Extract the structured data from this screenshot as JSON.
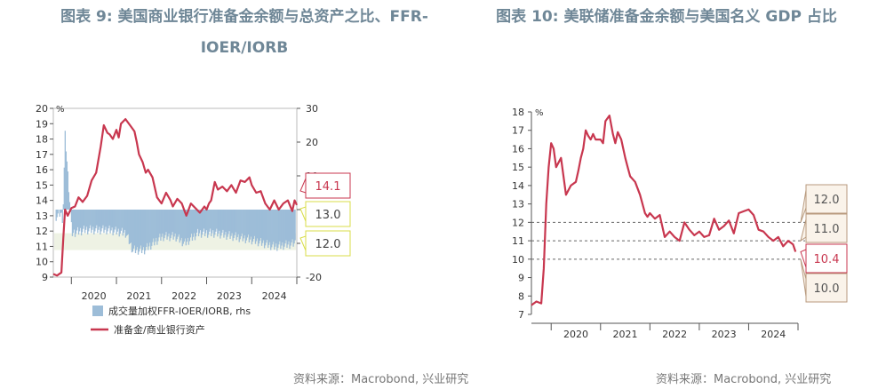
{
  "titles": {
    "left": "图表 9:  美国商业银行准备金余额与总资产之比、FFR-IOER/IORB",
    "right": "图表 10: 美联储准备金余额与美国名义 GDP 占比"
  },
  "sources": {
    "left": "资料来源：Macrobond, 兴业研究",
    "right": "资料来源：Macrobond, 兴业研究"
  },
  "colors": {
    "reserve_line": "#c8374f",
    "spread_bars": "#9dbdd8",
    "shade_band": "#eef2e4",
    "title": "#6f8797",
    "callout_red": "#c8374f",
    "callout_yellow": "#d8dc48",
    "callout_brown": "#b89a7e"
  },
  "chart_data": [
    {
      "type": "line",
      "unit_left": "%",
      "yleft_ticks": [
        9,
        10,
        11,
        12,
        13,
        14,
        15,
        16,
        17,
        18,
        19,
        20
      ],
      "ylim_left": [
        9,
        20
      ],
      "yright_ticks": [
        -20,
        -10,
        0,
        10,
        20,
        30
      ],
      "ylim_right": [
        -20,
        30
      ],
      "x_ticks": [
        "2020",
        "2021",
        "2022",
        "2023",
        "2024"
      ],
      "xlim": [
        2019.6,
        2025.0
      ],
      "legend": [
        "成交量加权FFR-IOER/IORB, rhs",
        "准备金/商业银行资产"
      ],
      "callouts": [
        "14.1",
        "13.0",
        "12.0"
      ],
      "series": [
        {
          "name": "准备金/商业银行资产",
          "x": [
            2019.6,
            2019.68,
            2019.78,
            2019.82,
            2019.86,
            2019.92,
            2020.0,
            2020.08,
            2020.16,
            2020.25,
            2020.35,
            2020.45,
            2020.55,
            2020.65,
            2020.72,
            2020.8,
            2020.85,
            2020.92,
            2021.0,
            2021.05,
            2021.1,
            2021.2,
            2021.3,
            2021.4,
            2021.45,
            2021.5,
            2021.58,
            2021.65,
            2021.7,
            2021.8,
            2021.9,
            2022.0,
            2022.1,
            2022.2,
            2022.25,
            2022.35,
            2022.45,
            2022.5,
            2022.55,
            2022.65,
            2022.75,
            2022.85,
            2022.95,
            2023.0,
            2023.05,
            2023.1,
            2023.18,
            2023.25,
            2023.35,
            2023.45,
            2023.55,
            2023.65,
            2023.75,
            2023.85,
            2023.95,
            2024.0,
            2024.1,
            2024.2,
            2024.3,
            2024.4,
            2024.5,
            2024.6,
            2024.7,
            2024.8,
            2024.9,
            2024.95,
            2025.0
          ],
          "y": [
            9.2,
            9.1,
            9.3,
            11.5,
            13.4,
            13.0,
            13.5,
            13.6,
            14.2,
            13.9,
            14.3,
            15.3,
            15.8,
            17.5,
            18.9,
            18.4,
            18.3,
            18.0,
            18.6,
            18.1,
            19.0,
            19.3,
            18.9,
            18.5,
            17.8,
            17.0,
            16.5,
            15.8,
            16.0,
            15.5,
            14.2,
            13.8,
            14.5,
            14.0,
            13.6,
            14.1,
            13.8,
            13.4,
            13.0,
            13.8,
            13.5,
            13.2,
            13.6,
            13.4,
            13.8,
            14.0,
            15.2,
            14.7,
            14.9,
            14.6,
            15.0,
            14.5,
            15.3,
            15.2,
            15.5,
            15.0,
            14.5,
            14.6,
            13.8,
            13.4,
            14.0,
            13.4,
            13.8,
            14.0,
            13.3,
            14.0,
            13.7
          ]
        },
        {
          "name": "成交量加权FFR-IOER/IORB, rhs",
          "x": [
            2019.65,
            2019.75,
            2019.8,
            2019.85,
            2020.0,
            2020.3,
            2020.8,
            2021.2,
            2021.35,
            2021.6,
            2022.0,
            2022.3,
            2022.5,
            2022.8,
            2023.2,
            2023.6,
            2024.0,
            2024.5,
            2024.95
          ],
          "y": [
            -2,
            -1,
            -3,
            22,
            -7,
            -6,
            -6,
            -7,
            -12,
            -12,
            -8,
            -8,
            -10,
            -7,
            -7,
            -8,
            -9,
            -11,
            -10
          ]
        }
      ]
    },
    {
      "type": "line",
      "unit_left": "%",
      "yleft_ticks": [
        7,
        8,
        9,
        10,
        11,
        12,
        13,
        14,
        15,
        16,
        17,
        18
      ],
      "ylim_left": [
        7,
        18
      ],
      "x_ticks": [
        "2020",
        "2021",
        "2022",
        "2023",
        "2024"
      ],
      "xlim": [
        2019.6,
        2025.0
      ],
      "reference_lines": [
        12,
        11,
        10
      ],
      "callouts": [
        "12.0",
        "11.0",
        "10.4",
        "10.0"
      ],
      "series": [
        {
          "name": "",
          "x": [
            2019.6,
            2019.7,
            2019.8,
            2019.85,
            2019.9,
            2019.95,
            2020.0,
            2020.05,
            2020.1,
            2020.2,
            2020.3,
            2020.4,
            2020.5,
            2020.55,
            2020.6,
            2020.65,
            2020.7,
            2020.75,
            2020.8,
            2020.85,
            2020.9,
            2021.0,
            2021.05,
            2021.1,
            2021.18,
            2021.25,
            2021.3,
            2021.35,
            2021.42,
            2021.5,
            2021.55,
            2021.6,
            2021.7,
            2021.8,
            2021.9,
            2021.95,
            2022.0,
            2022.1,
            2022.2,
            2022.3,
            2022.4,
            2022.5,
            2022.6,
            2022.7,
            2022.8,
            2022.9,
            2023.0,
            2023.1,
            2023.2,
            2023.3,
            2023.4,
            2023.5,
            2023.6,
            2023.7,
            2023.8,
            2023.9,
            2024.0,
            2024.1,
            2024.2,
            2024.3,
            2024.4,
            2024.5,
            2024.6,
            2024.7,
            2024.8,
            2024.9,
            2024.95
          ],
          "y": [
            7.5,
            7.7,
            7.6,
            9.5,
            13.0,
            15.0,
            16.3,
            16.0,
            15.0,
            15.5,
            13.5,
            14.0,
            14.2,
            14.8,
            15.5,
            16.0,
            17.0,
            16.7,
            16.5,
            16.8,
            16.5,
            16.5,
            16.3,
            17.5,
            17.8,
            16.8,
            16.3,
            16.9,
            16.5,
            15.5,
            15.0,
            14.5,
            14.2,
            13.5,
            12.5,
            12.3,
            12.5,
            12.2,
            12.4,
            11.2,
            11.5,
            11.2,
            11.0,
            12.0,
            11.6,
            11.3,
            11.5,
            11.2,
            11.3,
            12.2,
            11.6,
            11.8,
            12.1,
            11.4,
            12.5,
            12.6,
            12.7,
            12.4,
            11.6,
            11.5,
            11.2,
            11.0,
            11.2,
            10.7,
            11.0,
            10.8,
            10.4
          ]
        }
      ]
    }
  ]
}
